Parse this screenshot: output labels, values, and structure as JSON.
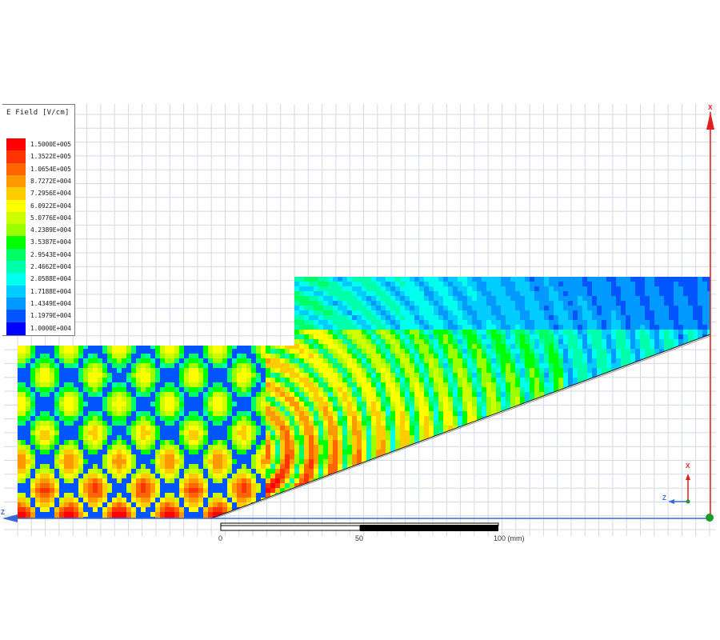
{
  "legend": {
    "title": "E Field [V/cm]",
    "entries": [
      {
        "label": "1.5000E+005",
        "color": "#ff0000"
      },
      {
        "label": "1.3522E+005",
        "color": "#ff3300"
      },
      {
        "label": "1.0654E+005",
        "color": "#ff6600"
      },
      {
        "label": "8.7272E+004",
        "color": "#ff9900"
      },
      {
        "label": "7.2956E+004",
        "color": "#ffcc00"
      },
      {
        "label": "6.0922E+004",
        "color": "#ffff00"
      },
      {
        "label": "5.0776E+004",
        "color": "#ccff00"
      },
      {
        "label": "4.2389E+004",
        "color": "#99ff00"
      },
      {
        "label": "3.5387E+004",
        "color": "#00ff00"
      },
      {
        "label": "2.9543E+004",
        "color": "#00ff66"
      },
      {
        "label": "2.4662E+004",
        "color": "#00ffaa"
      },
      {
        "label": "2.0588E+004",
        "color": "#00ffee"
      },
      {
        "label": "1.7188E+004",
        "color": "#00ccff"
      },
      {
        "label": "1.4349E+004",
        "color": "#0099ff"
      },
      {
        "label": "1.1979E+004",
        "color": "#0055ff"
      },
      {
        "label": "1.0000E+004",
        "color": "#0000ff"
      }
    ]
  },
  "scale_bar": {
    "labels": [
      "0",
      "50",
      "100 (mm)"
    ]
  },
  "axes": {
    "x_label": "X",
    "z_label": "Z",
    "triad_x": "X",
    "triad_z": "Z"
  },
  "colors": {
    "grid": "#d4d8e6",
    "axis_x": "#e02020",
    "axis_z": "#3a6ad8",
    "outline": "#222222"
  }
}
